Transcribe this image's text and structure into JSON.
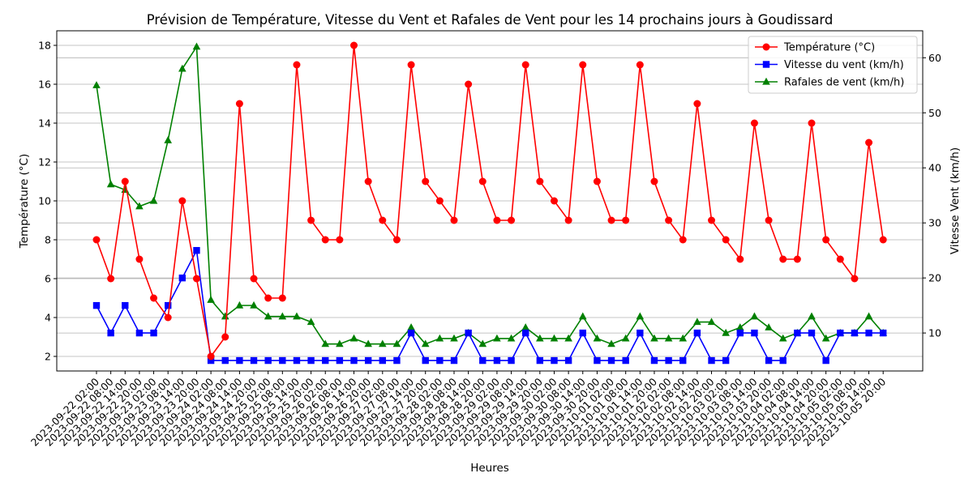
{
  "chart_data": {
    "type": "line",
    "title": "Prévision de Température, Vitesse du Vent et Rafales de Vent pour les 14 prochains jours à Goudissard",
    "xlabel": "Heures",
    "ylabel_left": "Température (°C)",
    "ylabel_right": "Vitesse Vent (km/h)",
    "ylim_left": [
      1.25,
      18.75
    ],
    "ylim_right": [
      3.1,
      64.9
    ],
    "yticks_left": [
      2,
      4,
      6,
      8,
      10,
      12,
      14,
      16,
      18
    ],
    "yticks_right": [
      10,
      20,
      30,
      40,
      50,
      60
    ],
    "grid": "horizontal",
    "legend_position": "top-right",
    "x": [
      "2023-09-22 02:00",
      "2023-09-22 08:00",
      "2023-09-22 14:00",
      "2023-09-22 20:00",
      "2023-09-23 02:00",
      "2023-09-23 08:00",
      "2023-09-23 14:00",
      "2023-09-23 20:00",
      "2023-09-24 02:00",
      "2023-09-24 08:00",
      "2023-09-24 14:00",
      "2023-09-24 20:00",
      "2023-09-25 02:00",
      "2023-09-25 08:00",
      "2023-09-25 14:00",
      "2023-09-25 20:00",
      "2023-09-26 02:00",
      "2023-09-26 08:00",
      "2023-09-26 14:00",
      "2023-09-26 20:00",
      "2023-09-27 02:00",
      "2023-09-27 08:00",
      "2023-09-27 14:00",
      "2023-09-27 20:00",
      "2023-09-28 02:00",
      "2023-09-28 08:00",
      "2023-09-28 14:00",
      "2023-09-28 20:00",
      "2023-09-29 02:00",
      "2023-09-29 08:00",
      "2023-09-29 14:00",
      "2023-09-29 20:00",
      "2023-09-30 02:00",
      "2023-09-30 08:00",
      "2023-09-30 14:00",
      "2023-09-30 20:00",
      "2023-10-01 02:00",
      "2023-10-01 08:00",
      "2023-10-01 14:00",
      "2023-10-01 20:00",
      "2023-10-02 02:00",
      "2023-10-02 08:00",
      "2023-10-02 14:00",
      "2023-10-02 20:00",
      "2023-10-03 02:00",
      "2023-10-03 08:00",
      "2023-10-03 14:00",
      "2023-10-03 20:00",
      "2023-10-04 02:00",
      "2023-10-04 08:00",
      "2023-10-04 14:00",
      "2023-10-04 20:00",
      "2023-10-05 02:00",
      "2023-10-05 08:00",
      "2023-10-05 14:00",
      "2023-10-05 20:00"
    ],
    "series": [
      {
        "name": "Température (°C)",
        "axis": "left",
        "color": "#ff0000",
        "marker": "circle",
        "values": [
          8,
          6,
          11,
          7,
          5,
          4,
          10,
          6,
          2,
          3,
          15,
          6,
          5,
          5,
          17,
          9,
          8,
          8,
          18,
          11,
          9,
          8,
          17,
          11,
          10,
          9,
          16,
          11,
          9,
          9,
          17,
          11,
          10,
          9,
          17,
          11,
          9,
          9,
          17,
          11,
          9,
          8,
          15,
          9,
          8,
          7,
          14,
          9,
          7,
          7,
          14,
          8,
          7,
          6,
          13,
          8
        ]
      },
      {
        "name": "Vitesse du vent (km/h)",
        "axis": "right",
        "color": "#0000ff",
        "marker": "square",
        "values": [
          15,
          10,
          15,
          10,
          10,
          15,
          20,
          25,
          5,
          5,
          5,
          5,
          5,
          5,
          5,
          5,
          5,
          5,
          5,
          5,
          5,
          5,
          10,
          5,
          5,
          5,
          10,
          5,
          5,
          5,
          10,
          5,
          5,
          5,
          10,
          5,
          5,
          5,
          10,
          5,
          5,
          5,
          10,
          5,
          5,
          10,
          10,
          5,
          5,
          10,
          10,
          5,
          10,
          10,
          10,
          10
        ]
      },
      {
        "name": "Rafales de vent (km/h)",
        "axis": "right",
        "color": "#008000",
        "marker": "triangle",
        "values": [
          55,
          37,
          36,
          33,
          34,
          45,
          58,
          62,
          16,
          13,
          15,
          15,
          13,
          13,
          13,
          12,
          8,
          8,
          9,
          8,
          8,
          8,
          11,
          8,
          9,
          9,
          10,
          8,
          9,
          9,
          11,
          9,
          9,
          9,
          13,
          9,
          8,
          9,
          13,
          9,
          9,
          9,
          12,
          12,
          10,
          11,
          13,
          11,
          9,
          10,
          13,
          9,
          10,
          10,
          13,
          10
        ]
      }
    ]
  }
}
